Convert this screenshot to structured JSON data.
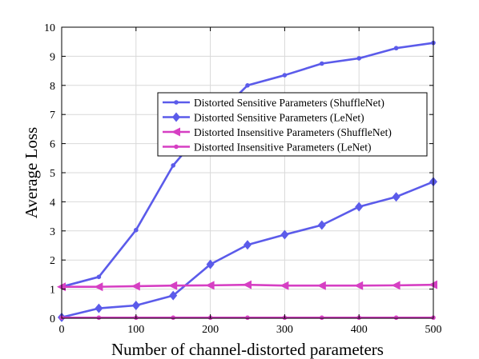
{
  "chart_data": {
    "type": "line",
    "title": "",
    "xlabel": "Number of channel-distorted parameters",
    "ylabel": "Average Loss",
    "xlim": [
      0,
      500
    ],
    "ylim": [
      0,
      10
    ],
    "xticks": [
      0,
      100,
      200,
      300,
      400,
      500
    ],
    "yticks": [
      0,
      1,
      2,
      3,
      4,
      5,
      6,
      7,
      8,
      9,
      10
    ],
    "grid": true,
    "legend_position": "upper-right",
    "x": [
      0,
      50,
      100,
      150,
      200,
      250,
      300,
      350,
      400,
      450,
      500
    ],
    "series": [
      {
        "name": "Distorted Sensitive Parameters (ShuffleNet)",
        "color": "#5b5bea",
        "marker": "point",
        "values": [
          1.08,
          1.42,
          3.03,
          5.25,
          6.75,
          8.0,
          8.35,
          8.75,
          8.93,
          9.28,
          9.46
        ]
      },
      {
        "name": "Distorted Sensitive Parameters (LeNet)",
        "color": "#5b5bea",
        "marker": "diamond",
        "values": [
          0.03,
          0.34,
          0.44,
          0.78,
          1.85,
          2.52,
          2.87,
          3.2,
          3.83,
          4.17,
          4.69
        ]
      },
      {
        "name": "Distorted Insensitive Parameters (ShuffleNet)",
        "color": "#d63fc3",
        "marker": "triangle-left",
        "values": [
          1.08,
          1.08,
          1.1,
          1.12,
          1.13,
          1.15,
          1.12,
          1.12,
          1.12,
          1.13,
          1.15
        ]
      },
      {
        "name": "Distorted Insensitive Parameters (LeNet)",
        "color": "#d63fc3",
        "marker": "point",
        "values": [
          0.02,
          0.02,
          0.02,
          0.02,
          0.02,
          0.02,
          0.02,
          0.02,
          0.02,
          0.02,
          0.02
        ]
      }
    ]
  }
}
